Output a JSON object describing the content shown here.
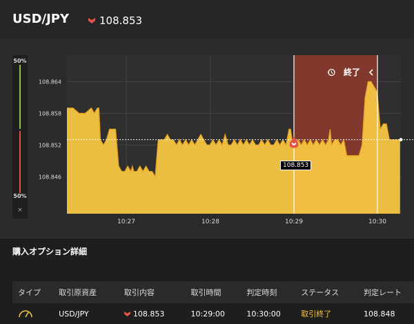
{
  "header": {
    "pair": "USD/JPY",
    "current_price": "108.853",
    "direction_icon": "down-chevron-icon",
    "direction_color": "#e45449"
  },
  "ratio_panel": {
    "top_label": "50%",
    "bottom_label": "50%",
    "close_symbol": "×"
  },
  "chart_data": {
    "type": "area",
    "series_color": "#f5c542",
    "x_ticks": [
      "10:27",
      "10:28",
      "10:29",
      "10:30"
    ],
    "y_ticks": [
      "108.864",
      "108.858",
      "108.852",
      "108.846"
    ],
    "ylim": [
      108.839,
      108.869
    ],
    "current_price": 108.853,
    "entry_label": "108.853",
    "x": [
      10.43,
      10.45,
      10.47,
      10.49,
      10.51,
      10.52,
      10.53,
      10.535,
      10.54,
      10.55,
      10.56,
      10.57,
      10.58,
      10.59,
      10.6,
      10.61,
      10.62,
      10.63,
      10.64,
      10.645,
      10.65,
      10.66,
      10.67,
      10.68,
      10.69,
      10.7,
      10.71,
      10.72,
      10.73,
      10.74,
      10.75,
      10.76,
      10.77,
      10.78,
      10.79,
      10.8,
      10.81,
      10.82,
      10.83,
      10.84,
      10.85,
      10.86,
      10.87,
      10.88,
      10.89,
      10.9,
      10.91,
      10.92,
      10.93,
      10.94,
      10.95,
      10.96,
      10.97,
      10.98,
      10.99,
      11.0,
      11.01,
      11.02,
      11.03,
      11.04,
      11.05,
      11.06,
      11.07,
      11.08,
      11.09,
      11.1,
      11.11,
      11.12,
      11.13,
      11.14,
      11.15,
      11.16,
      11.165,
      11.17,
      11.18,
      11.19,
      11.2,
      11.21,
      11.22,
      11.23,
      11.24,
      11.25,
      11.26,
      11.27,
      11.28,
      11.29,
      11.295,
      11.3,
      11.31,
      11.32,
      11.33,
      11.34,
      11.35,
      11.36,
      11.37,
      11.38,
      11.39,
      11.4,
      11.41,
      11.42,
      11.43,
      11.44,
      11.45,
      11.46,
      11.47,
      11.48,
      11.49,
      11.5,
      11.505,
      11.51,
      11.52,
      11.525
    ],
    "y": [
      108.859,
      108.859,
      108.858,
      108.858,
      108.859,
      108.858,
      108.859,
      108.859,
      108.853,
      108.852,
      108.853,
      108.855,
      108.855,
      108.855,
      108.848,
      108.847,
      108.847,
      108.848,
      108.847,
      108.848,
      108.847,
      108.847,
      108.848,
      108.847,
      108.848,
      108.847,
      108.847,
      108.846,
      108.853,
      108.853,
      108.853,
      108.854,
      108.853,
      108.853,
      108.852,
      108.853,
      108.852,
      108.853,
      108.852,
      108.853,
      108.852,
      108.853,
      108.854,
      108.853,
      108.852,
      108.852,
      108.853,
      108.852,
      108.853,
      108.852,
      108.854,
      108.852,
      108.852,
      108.853,
      108.852,
      108.853,
      108.852,
      108.853,
      108.852,
      108.853,
      108.852,
      108.852,
      108.853,
      108.852,
      108.853,
      108.852,
      108.852,
      108.853,
      108.852,
      108.853,
      108.852,
      108.855,
      108.855,
      108.853,
      108.852,
      108.853,
      108.852,
      108.853,
      108.852,
      108.853,
      108.852,
      108.853,
      108.852,
      108.853,
      108.852,
      108.853,
      108.855,
      108.852,
      108.853,
      108.853,
      108.852,
      108.853,
      108.85,
      108.85,
      108.85,
      108.85,
      108.85,
      108.852,
      108.861,
      108.864,
      108.864,
      108.863,
      108.862,
      108.855,
      108.856,
      108.856,
      108.853,
      108.853,
      108.853,
      108.853,
      108.853,
      108.853
    ]
  },
  "expiry_banner": {
    "icon": "history-icon",
    "label": "終了",
    "arrow_icon": "chevron-left-icon"
  },
  "section_title": "購入オプション詳細",
  "table": {
    "headers": [
      "タイプ",
      "取引原資産",
      "取引内容",
      "取引時間",
      "判定時刻",
      "ステータス",
      "判定レート"
    ],
    "rows": [
      {
        "type_icon": "gauge-icon",
        "asset": "USD/JPY",
        "content": "108.853",
        "trade_time": "10:29:00",
        "judge_time": "10:30:00",
        "status": "取引終了",
        "judge_rate": "108.848"
      }
    ]
  }
}
